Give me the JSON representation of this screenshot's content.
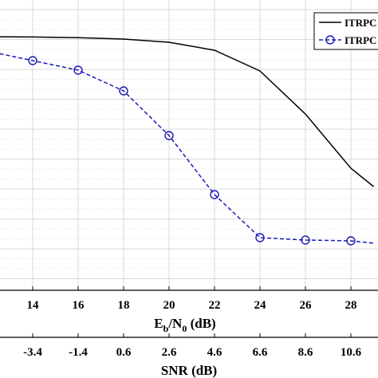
{
  "chart_data": {
    "type": "line",
    "xlabel_main": "E",
    "xlabel_sub_b": "b",
    "xlabel_mid": "/N",
    "xlabel_sub_0": "0",
    "xlabel_unit": " (dB)",
    "xlabel2": "SNR (dB)",
    "x": [
      12,
      14,
      16,
      18,
      20,
      22,
      24,
      26,
      28,
      29
    ],
    "x_ticks": [
      "14",
      "16",
      "18",
      "20",
      "22",
      "24",
      "26",
      "28"
    ],
    "x2_ticks": [
      "-3.4",
      "-1.4",
      "0.6",
      "2.6",
      "4.6",
      "6.6",
      "8.6",
      "10.6"
    ],
    "y_gridlines": 12,
    "grid": true,
    "legend_position": "top-right",
    "series": [
      {
        "name": "ITRPC",
        "style": "solid",
        "color": "#000000",
        "marker": "none",
        "x": [
          12,
          14,
          16,
          18,
          20,
          22,
          24,
          26,
          28,
          29
        ],
        "y": [
          0.0,
          0.4,
          1.2,
          3.0,
          7.0,
          17.0,
          43.0,
          97.0,
          165.0,
          188.0
        ]
      },
      {
        "name": "ITRPC",
        "style": "dashed",
        "color": "#1a1ab8",
        "marker": "circle",
        "x": [
          12,
          14,
          16,
          18,
          20,
          22,
          24,
          26,
          28,
          29
        ],
        "y": [
          18.0,
          30.0,
          42.0,
          68.0,
          124.0,
          198.0,
          252.0,
          255.0,
          256.0,
          259.0
        ]
      }
    ]
  },
  "colors": {
    "grid": "#d9d9d9",
    "axis": "#000000"
  }
}
